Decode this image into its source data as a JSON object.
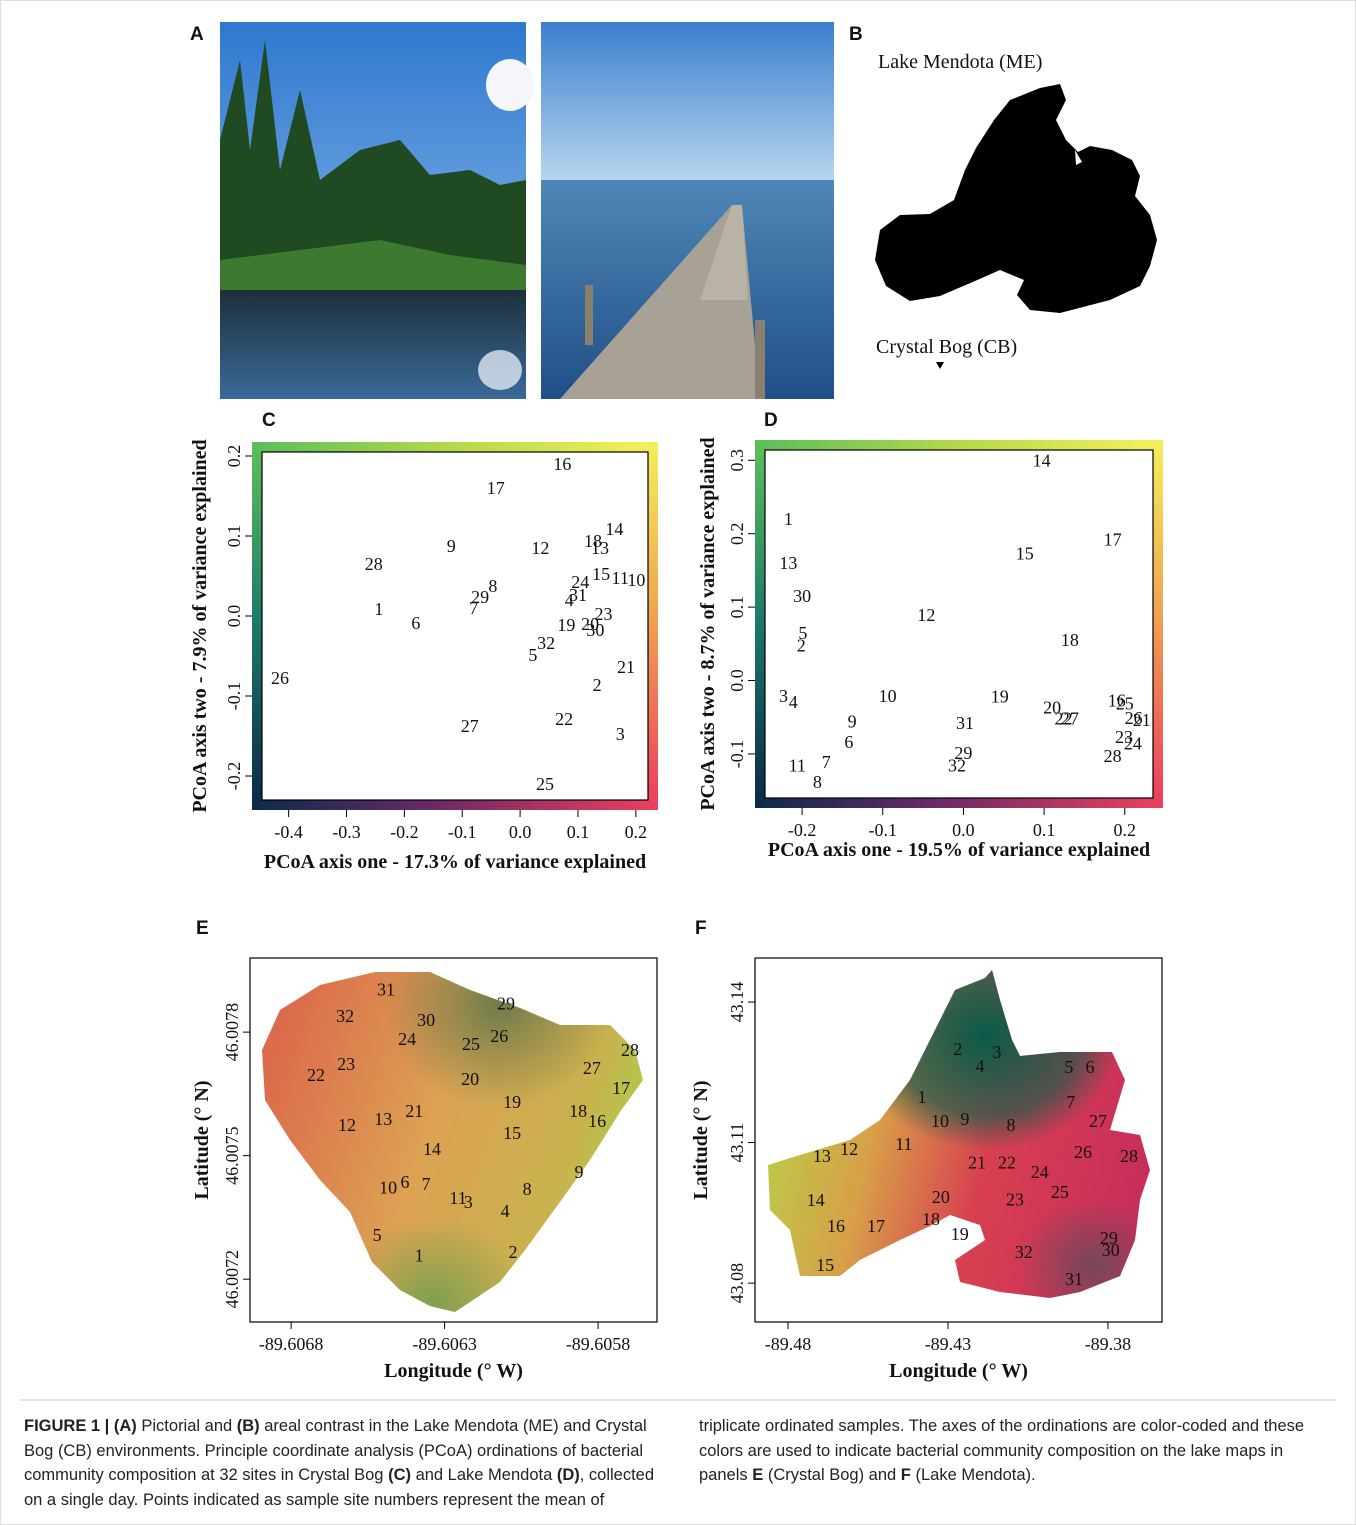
{
  "panels": {
    "a_label": "A",
    "b_label": "B",
    "b_lakes": [
      "Lake Mendota (ME)",
      "Crystal Bog (CB)"
    ]
  },
  "chart_data": [
    {
      "type": "scatter",
      "panel": "C",
      "xlabel": "PCoA axis one - 17.3% of variance explained",
      "ylabel": "PCoA axis two - 7.9% of variance explained",
      "xlim": [
        -0.446,
        0.221
      ],
      "ylim": [
        -0.23,
        0.205
      ],
      "xticks": [
        -0.4,
        -0.3,
        -0.2,
        -0.1,
        {
          "value": 0,
          "label": "0.0"
        },
        0.1,
        0.2
      ],
      "yticks": [
        -0.2,
        -0.1,
        {
          "value": 0,
          "label": "0.0"
        },
        0.1,
        0.2
      ],
      "point_labels": [
        "1",
        "2",
        "3",
        "4",
        "5",
        "6",
        "7",
        "8",
        "9",
        "10",
        "11",
        "12",
        "13",
        "14",
        "15",
        "16",
        "17",
        "18",
        "19",
        "20",
        "21",
        "22",
        "23",
        "24",
        "25",
        "26",
        "27",
        "28",
        "29",
        "30",
        "31",
        "32"
      ],
      "x": [
        -0.244,
        0.133,
        0.173,
        0.085,
        0.022,
        -0.18,
        -0.08,
        -0.047,
        -0.119,
        0.201,
        0.173,
        0.035,
        0.138,
        0.163,
        0.14,
        0.073,
        -0.042,
        0.126,
        0.08,
        0.121,
        0.183,
        0.076,
        0.144,
        0.104,
        0.043,
        -0.415,
        -0.087,
        -0.253,
        -0.069,
        0.13,
        0.1,
        0.045
      ],
      "values": [
        0.009,
        -0.086,
        -0.1475,
        0.02,
        -0.049,
        -0.009,
        0.01,
        0.0375,
        0.0875,
        0.045,
        0.0475,
        0.085,
        0.085,
        0.109,
        0.0525,
        0.19,
        0.16,
        0.094,
        -0.011,
        -0.01,
        -0.064,
        -0.129,
        0.0025,
        0.0425,
        -0.21,
        -0.0775,
        -0.1375,
        0.065,
        0.024,
        -0.0175,
        0.026,
        -0.034
      ]
    },
    {
      "type": "scatter",
      "panel": "D",
      "xlabel": "PCoA axis one - 19.5% of variance explained",
      "ylabel": "PCoA axis two - 8.7% of variance explained",
      "xlim": [
        -0.246,
        0.235
      ],
      "ylim": [
        -0.16,
        0.314
      ],
      "xticks": [
        -0.2,
        -0.1,
        {
          "value": 0,
          "label": "0.0"
        },
        0.1,
        0.2
      ],
      "yticks": [
        -0.1,
        {
          "value": 0,
          "label": "0.0"
        },
        0.1,
        0.2,
        0.3
      ],
      "point_labels": [
        "1",
        "2",
        "3",
        "4",
        "5",
        "6",
        "7",
        "8",
        "9",
        "10",
        "11",
        "12",
        "13",
        "14",
        "15",
        "16",
        "17",
        "18",
        "19",
        "20",
        "21",
        "22",
        "23",
        "24",
        "25",
        "26",
        "27",
        "28",
        "29",
        "30",
        "31",
        "32"
      ],
      "x": [
        -0.217,
        -0.201,
        -0.223,
        -0.211,
        -0.199,
        -0.142,
        -0.17,
        -0.181,
        -0.138,
        -0.094,
        -0.206,
        -0.046,
        -0.217,
        0.097,
        0.076,
        0.19,
        0.185,
        0.132,
        0.045,
        0.11,
        0.221,
        0.124,
        0.199,
        0.21,
        0.2,
        0.211,
        0.132,
        0.185,
        0,
        -0.2,
        0.002,
        -0.008
      ],
      "values": [
        0.22,
        0.048,
        -0.021,
        -0.029,
        0.065,
        -0.084,
        -0.111,
        -0.138,
        -0.056,
        -0.021,
        -0.116,
        0.089,
        0.16,
        0.3,
        0.173,
        -0.027,
        0.192,
        0.055,
        -0.022,
        -0.037,
        -0.054,
        -0.052,
        -0.077,
        -0.086,
        -0.031,
        -0.051,
        -0.052,
        -0.103,
        -0.099,
        0.115,
        -0.058,
        -0.116
      ]
    },
    {
      "type": "map",
      "panel": "E",
      "xlabel": "Longitude (° W)",
      "ylabel": "Latitude (° N)",
      "xlim": [
        -89.606934,
        -89.605608
      ],
      "ylim": [
        46.007096,
        46.00798
      ],
      "xticks": [
        -89.6068,
        -89.6063,
        -89.6058
      ],
      "yticks": [
        46.0072,
        46.0075,
        46.0078
      ],
      "point_labels": [
        "1",
        "2",
        "3",
        "4",
        "5",
        "6",
        "7",
        "8",
        "9",
        "10",
        "11",
        "12",
        "13",
        "14",
        "15",
        "16",
        "17",
        "18",
        "19",
        "20",
        "21",
        "22",
        "23",
        "24",
        "25",
        "26",
        "27",
        "28",
        "29",
        "30",
        "31",
        "32"
      ],
      "x": [
        -89.606383,
        -89.606077,
        -89.606223,
        -89.606103,
        -89.60652,
        -89.606429,
        -89.60636,
        -89.606031,
        -89.605862,
        -89.606484,
        -89.606256,
        -89.606618,
        -89.6065,
        -89.606341,
        -89.60608,
        -89.605803,
        -89.605725,
        -89.605865,
        -89.60608,
        -89.606217,
        -89.606399,
        -89.606719,
        -89.606621,
        -89.606422,
        -89.606214,
        -89.606122,
        -89.60582,
        -89.605696,
        -89.6061,
        -89.60636,
        -89.606491,
        -89.606624
      ],
      "values": [
        46.007258,
        46.007266,
        46.007387,
        46.007365,
        46.007307,
        46.007436,
        46.007431,
        46.007419,
        46.00746,
        46.007423,
        46.007397,
        46.007574,
        46.007589,
        46.007516,
        46.007555,
        46.007584,
        46.007664,
        46.007608,
        46.00763,
        46.007686,
        46.007608,
        46.007696,
        46.007722,
        46.007783,
        46.007771,
        46.00779,
        46.007713,
        46.007756,
        46.00787,
        46.007829,
        46.007904,
        46.007839
      ]
    },
    {
      "type": "map",
      "panel": "F",
      "xlabel": "Longitude (° W)",
      "ylabel": "Latitude (° N)",
      "xlim": [
        -89.4903,
        -89.3631
      ],
      "ylim": [
        43.0717,
        43.1494
      ],
      "xticks": [
        -89.48,
        -89.43,
        -89.38
      ],
      "yticks": [
        43.08,
        43.11,
        43.14
      ],
      "point_labels": [
        "1",
        "2",
        "3",
        "4",
        "5",
        "6",
        "7",
        "8",
        "9",
        "10",
        "11",
        "12",
        "13",
        "14",
        "15",
        "16",
        "17",
        "18",
        "19",
        "20",
        "21",
        "22",
        "23",
        "24",
        "25",
        "26",
        "27",
        "28",
        "29",
        "30",
        "31",
        "32"
      ],
      "x": [
        -89.4381,
        -89.4269,
        -89.4147,
        -89.42,
        -89.3922,
        -89.3856,
        -89.3916,
        -89.4103,
        -89.4247,
        -89.4325,
        -89.4438,
        -89.4609,
        -89.4694,
        -89.4713,
        -89.4684,
        -89.465,
        -89.4525,
        -89.4353,
        -89.4263,
        -89.4322,
        -89.4209,
        -89.4116,
        -89.4091,
        -89.4013,
        -89.395,
        -89.3878,
        -89.3831,
        -89.3734,
        -89.3797,
        -89.3791,
        -89.3906,
        -89.4063
      ],
      "values": [
        43.1197,
        43.13,
        43.1293,
        43.1263,
        43.1261,
        43.1261,
        43.1187,
        43.1137,
        43.115,
        43.1146,
        43.1097,
        43.1086,
        43.1071,
        43.0977,
        43.0839,
        43.0922,
        43.0922,
        43.0937,
        43.0905,
        43.0984,
        43.1058,
        43.1058,
        43.0979,
        43.1037,
        43.0994,
        43.108,
        43.1146,
        43.1071,
        43.0896,
        43.0871,
        43.0809,
        43.0866
      ]
    }
  ],
  "caption": [
    {
      "text": "FIGURE 1 | (A)",
      "bold": true
    },
    {
      "text": " Pictorial and ",
      "bold": false
    },
    {
      "text": "(B)",
      "bold": true
    },
    {
      "text": " areal contrast in the Lake Mendota (ME) and Crystal Bog (CB) environments. Principle coordinate analysis (PCoA) ordinations of bacterial community composition at 32 sites in Crystal Bog ",
      "bold": false
    },
    {
      "text": "(C)",
      "bold": true
    },
    {
      "text": " and Lake Mendota ",
      "bold": false
    },
    {
      "text": "(D)",
      "bold": true
    },
    {
      "text": ", collected on a single day. Points indicated as sample site numbers represent the mean of triplicate ordinated samples. The axes of the ordinations are color-coded and these colors are used to indicate bacterial community composition on the lake maps in panels ",
      "bold": false
    },
    {
      "text": "E",
      "bold": true
    },
    {
      "text": " (Crystal Bog) and ",
      "bold": false
    },
    {
      "text": "F",
      "bold": true
    },
    {
      "text": " (Lake Mendota).",
      "bold": false
    }
  ]
}
